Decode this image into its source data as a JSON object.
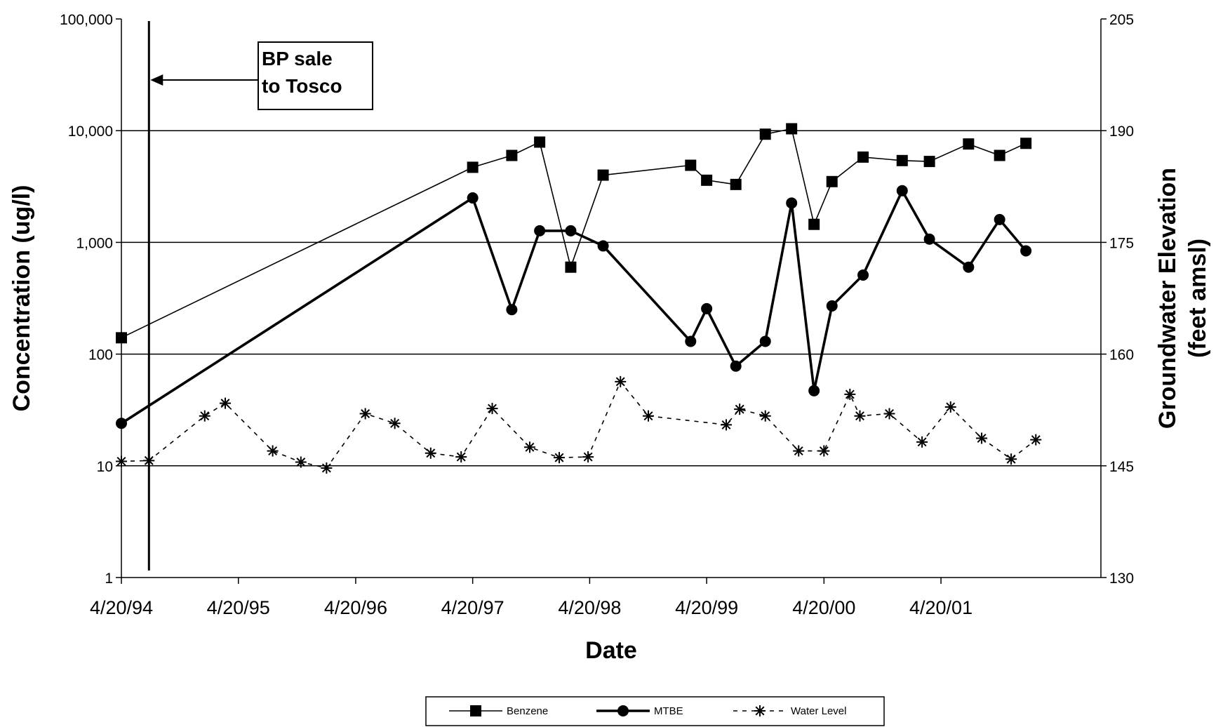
{
  "chart_data": {
    "type": "line",
    "xlabel": "Date",
    "ylabel_left": "Concentration (ug/l)",
    "ylabel_right_line1": "Groundwater Elevation",
    "ylabel_right_line2": "(feet amsl)",
    "y_left_scale": "log",
    "y_left_lim": [
      1,
      100000
    ],
    "y_left_ticks": [
      "1",
      "10",
      "100",
      "1,000",
      "10,000",
      "100,000"
    ],
    "y_right_lim": [
      130,
      205
    ],
    "y_right_ticks": [
      "130",
      "145",
      "160",
      "175",
      "190",
      "205"
    ],
    "x_ticks": [
      "4/20/94",
      "4/20/95",
      "4/20/96",
      "4/20/97",
      "4/20/98",
      "4/20/99",
      "4/20/00",
      "4/20/01"
    ],
    "grid": "horizontal",
    "legend_position": "bottom",
    "annotation": {
      "line1": "BP sale",
      "line2": "to Tosco",
      "date": "1994-07-15"
    },
    "series": [
      {
        "name": "Benzene",
        "axis": "left",
        "marker": "square",
        "points": [
          [
            "1994-04-20",
            140
          ],
          [
            "1997-04-20",
            4700
          ],
          [
            "1997-08-20",
            6000
          ],
          [
            "1997-11-15",
            7900
          ],
          [
            "1998-02-20",
            600
          ],
          [
            "1998-06-01",
            4000
          ],
          [
            "1999-03-01",
            4900
          ],
          [
            "1999-04-20",
            3600
          ],
          [
            "1999-07-20",
            3300
          ],
          [
            "1999-10-20",
            9300
          ],
          [
            "2000-01-10",
            10400
          ],
          [
            "2000-03-20",
            1450
          ],
          [
            "2000-05-15",
            3500
          ],
          [
            "2000-08-20",
            5800
          ],
          [
            "2000-12-20",
            5400
          ],
          [
            "2001-03-15",
            5300
          ],
          [
            "2001-07-15",
            7600
          ],
          [
            "2001-10-20",
            6000
          ],
          [
            "2002-01-10",
            7700
          ]
        ]
      },
      {
        "name": "MTBE",
        "axis": "left",
        "marker": "circle",
        "points": [
          [
            "1994-04-20",
            24
          ],
          [
            "1997-04-20",
            2500
          ],
          [
            "1997-08-20",
            250
          ],
          [
            "1997-11-15",
            1270
          ],
          [
            "1998-02-20",
            1270
          ],
          [
            "1998-06-01",
            930
          ],
          [
            "1999-03-01",
            130
          ],
          [
            "1999-04-20",
            255
          ],
          [
            "1999-07-20",
            78
          ],
          [
            "1999-10-20",
            130
          ],
          [
            "2000-01-10",
            2250
          ],
          [
            "2000-03-20",
            47
          ],
          [
            "2000-05-15",
            270
          ],
          [
            "2000-08-20",
            510
          ],
          [
            "2000-12-20",
            2900
          ],
          [
            "2001-03-15",
            1070
          ],
          [
            "2001-07-15",
            600
          ],
          [
            "2001-10-20",
            1600
          ],
          [
            "2002-01-10",
            840
          ]
        ]
      },
      {
        "name": "Water Level",
        "axis": "right",
        "marker": "asterisk",
        "points": [
          [
            "1994-04-20",
            145.6
          ],
          [
            "1994-07-15",
            145.7
          ],
          [
            "1995-01-05",
            151.7
          ],
          [
            "1995-03-10",
            153.4
          ],
          [
            "1995-08-05",
            147.0
          ],
          [
            "1995-11-01",
            145.5
          ],
          [
            "1996-01-20",
            144.7
          ],
          [
            "1996-05-20",
            152.0
          ],
          [
            "1996-08-20",
            150.7
          ],
          [
            "1996-12-10",
            146.7
          ],
          [
            "1997-03-15",
            146.2
          ],
          [
            "1997-06-20",
            152.7
          ],
          [
            "1997-10-15",
            147.5
          ],
          [
            "1998-01-15",
            146.1
          ],
          [
            "1998-04-15",
            146.2
          ],
          [
            "1998-07-25",
            156.3
          ],
          [
            "1998-10-20",
            151.7
          ],
          [
            "1999-06-20",
            150.5
          ],
          [
            "1999-08-01",
            152.6
          ],
          [
            "1999-10-20",
            151.7
          ],
          [
            "2000-02-01",
            147.0
          ],
          [
            "2000-04-20",
            147.0
          ],
          [
            "2000-07-10",
            154.6
          ],
          [
            "2000-08-10",
            151.7
          ],
          [
            "2000-11-10",
            152.0
          ],
          [
            "2001-02-20",
            148.2
          ],
          [
            "2001-05-20",
            152.9
          ],
          [
            "2001-08-25",
            148.7
          ],
          [
            "2001-11-25",
            145.9
          ],
          [
            "2002-02-10",
            148.5
          ]
        ]
      }
    ]
  },
  "colors": {
    "line": "#000000",
    "grid": "#000000",
    "background": "#ffffff"
  }
}
